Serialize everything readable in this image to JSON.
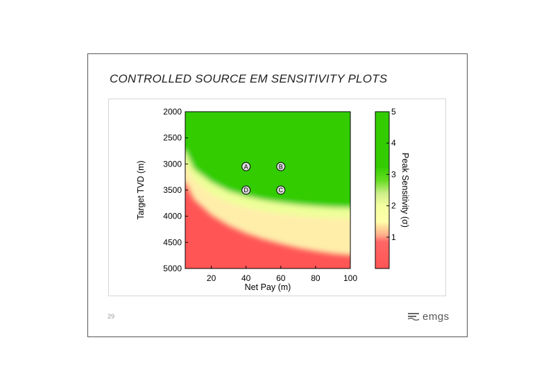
{
  "slide": {
    "title": "CONTROLLED SOURCE EM SENSITIVITY PLOTS",
    "page_number": "29",
    "logo_text": "emgs"
  },
  "colors": {
    "high": "#33cc00",
    "mid": "#ffffaa",
    "low": "#ff5555"
  },
  "chart_data": {
    "type": "heatmap",
    "title": "",
    "xlabel": "Net Pay (m)",
    "ylabel": "Target TVD (m)",
    "xlim": [
      5,
      100
    ],
    "ylim": [
      5000,
      2000
    ],
    "x_ticks": [
      20,
      40,
      60,
      80,
      100
    ],
    "y_ticks": [
      2000,
      2500,
      3000,
      3500,
      4000,
      4500,
      5000
    ],
    "colorbar": {
      "label": "Peak Sensitivity (σ)",
      "range": [
        0,
        5
      ],
      "ticks": [
        1,
        2,
        3,
        4,
        5
      ]
    },
    "contours": {
      "description_levels": [
        1.0,
        2.0,
        2.5
      ],
      "level_1_boundary": [
        [
          5,
          3350
        ],
        [
          10,
          3680
        ],
        [
          20,
          3980
        ],
        [
          30,
          4180
        ],
        [
          40,
          4330
        ],
        [
          50,
          4440
        ],
        [
          60,
          4530
        ],
        [
          70,
          4610
        ],
        [
          80,
          4670
        ],
        [
          90,
          4720
        ],
        [
          100,
          4750
        ]
      ],
      "level_2_boundary": [
        [
          5,
          3000
        ],
        [
          10,
          3300
        ],
        [
          20,
          3580
        ],
        [
          30,
          3730
        ],
        [
          40,
          3830
        ],
        [
          50,
          3900
        ],
        [
          60,
          3950
        ],
        [
          70,
          3990
        ],
        [
          80,
          4020
        ],
        [
          90,
          4040
        ],
        [
          100,
          4050
        ]
      ],
      "level_25_boundary": [
        [
          5,
          2750
        ],
        [
          10,
          3100
        ],
        [
          20,
          3350
        ],
        [
          30,
          3520
        ],
        [
          40,
          3620
        ],
        [
          50,
          3690
        ],
        [
          60,
          3740
        ],
        [
          70,
          3780
        ],
        [
          80,
          3810
        ],
        [
          90,
          3830
        ],
        [
          100,
          3840
        ]
      ]
    },
    "markers": [
      {
        "label": "A",
        "x": 40,
        "y": 3050
      },
      {
        "label": "B",
        "x": 60,
        "y": 3050
      },
      {
        "label": "C",
        "x": 60,
        "y": 3500
      },
      {
        "label": "D",
        "x": 40,
        "y": 3500
      }
    ]
  }
}
